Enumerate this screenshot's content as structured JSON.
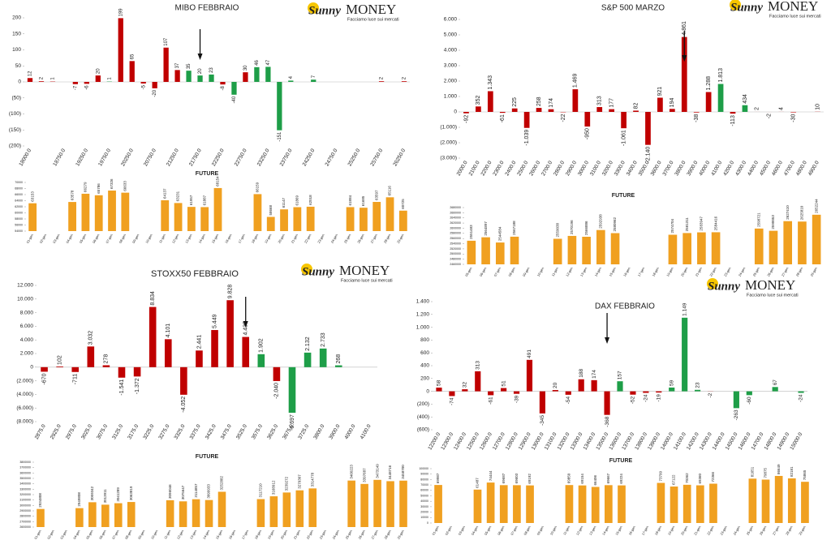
{
  "logo": {
    "brand": "Sunny",
    "name": "MONEY",
    "tagline": "Facciamo luce sui mercati"
  },
  "chart_data": [
    {
      "type": "bar",
      "title": "MIBO FEBBRAIO",
      "categories": [
        "18000.0",
        null,
        null,
        "18750.0",
        null,
        "19250.0",
        null,
        "19750.0",
        null,
        "20250.0",
        null,
        "20750.0",
        null,
        "21250.0",
        null,
        "21750.0",
        null,
        "22250.0",
        null,
        "22750.0",
        null,
        "23250.0",
        null,
        "23750.0",
        null,
        "24250.0",
        null,
        "24750.0",
        null,
        "25250.0",
        null,
        "25750.0",
        null,
        "26250.0"
      ],
      "values": [
        12,
        2,
        1,
        null,
        -7,
        -6,
        20,
        1,
        199,
        65,
        -5,
        -20,
        107,
        37,
        35,
        20,
        23,
        -8,
        -40,
        30,
        46,
        47,
        -151,
        4,
        null,
        7,
        null,
        null,
        null,
        null,
        null,
        2,
        null,
        2
      ],
      "colors": [
        "#c00000",
        "#c00000",
        "#c00000",
        null,
        "#c00000",
        "#c00000",
        "#c00000",
        "#1e9e48",
        "#c00000",
        "#c00000",
        "#c00000",
        "#c00000",
        "#c00000",
        "#c00000",
        "#1e9e48",
        "#1e9e48",
        "#1e9e48",
        "#c00000",
        "#1e9e48",
        "#c00000",
        "#1e9e48",
        "#1e9e48",
        "#1e9e48",
        "#1e9e48",
        null,
        "#1e9e48",
        null,
        null,
        null,
        null,
        null,
        "#c00000",
        null,
        "#c00000"
      ],
      "ylim": [
        -200,
        200
      ],
      "yticks": [
        200,
        150,
        100,
        50,
        0,
        {
          "value": -50,
          "label": "(50)"
        },
        {
          "value": -100,
          "label": "(100)"
        },
        {
          "value": -150,
          "label": "(150)"
        },
        {
          "value": -200,
          "label": "(200)"
        }
      ]
    },
    {
      "type": "bar",
      "title": "FUTURE",
      "color": "#f0a020",
      "categories": [
        "01-gen",
        "02-gen",
        "03-gen",
        "04-gen",
        "05-gen",
        "06-gen",
        "07-gen",
        "08-gen",
        "09-gen",
        "10-gen",
        "11-gen",
        "12-gen",
        "13-gen",
        "14-gen",
        "15-gen",
        "16-gen",
        "17-gen",
        "18-gen",
        "19-gen",
        "20-gen",
        "21-gen",
        "22-gen",
        "23-gen",
        "24-gen",
        "25-gen",
        "26-gen",
        "27-gen",
        "28-gen",
        "29-gen"
      ],
      "values": [
        63153,
        null,
        null,
        63578,
        66279,
        65786,
        67326,
        66633,
        null,
        null,
        64137,
        63231,
        61957,
        61887,
        68154,
        null,
        null,
        66159,
        58668,
        61147,
        61869,
        62018,
        null,
        null,
        61884,
        61685,
        63597,
        65116,
        60725
      ],
      "ylim": [
        54000,
        70000
      ],
      "yticks": [
        54000,
        56000,
        58000,
        60000,
        62000,
        64000,
        66000,
        68000,
        70000
      ]
    },
    {
      "type": "bar",
      "title": "S&P 500 MARZO",
      "categories": [
        "2000.0",
        "2100.0",
        "2200.0",
        "2300.0",
        "2400.0",
        "2500.0",
        "2600.0",
        "2700.0",
        "2800.0",
        "2900.0",
        "3000.0",
        "3100.0",
        "3200.0",
        "3300.0",
        "3400.0",
        "3500.0",
        "3600.0",
        "3700.0",
        "3800.0",
        "3900.0",
        "4000.0",
        "4100.0",
        "4200.0",
        "4300.0",
        "4400.0",
        "4500.0",
        "4600.0",
        "4700.0",
        "4800.0",
        "4900.0"
      ],
      "values": [
        -92,
        352,
        1343,
        -61,
        225,
        -1039,
        258,
        174,
        -22,
        1469,
        -950,
        313,
        177,
        -1061,
        82,
        -2140,
        921,
        194,
        4861,
        -38,
        1288,
        1813,
        -113,
        434,
        2,
        -2,
        4,
        -30,
        null,
        10
      ],
      "value_labels": [
        "-92",
        "352",
        "1.343",
        "-61",
        "225",
        "-1.039",
        "258",
        "174",
        "-22",
        "1.469",
        "-950",
        "313",
        "177",
        "-1.061",
        "82",
        "-2.140",
        "921",
        "194",
        "4.861",
        "-38",
        "1.288",
        "1.813",
        "-113",
        "434",
        "2",
        "-2",
        "4",
        "-30",
        null,
        "10"
      ],
      "colors": [
        "#c00000",
        "#c00000",
        "#c00000",
        "#c00000",
        "#c00000",
        "#c00000",
        "#c00000",
        "#c00000",
        "#c00000",
        "#c00000",
        "#c00000",
        "#c00000",
        "#c00000",
        "#c00000",
        "#c00000",
        "#c00000",
        "#c00000",
        "#c00000",
        "#c00000",
        "#c00000",
        "#c00000",
        "#1e9e48",
        "#c00000",
        "#1e9e48",
        "#c00000",
        "#c00000",
        "#c00000",
        "#c00000",
        null,
        "#c00000"
      ],
      "ylim": [
        -3000,
        6000
      ],
      "yticks": [
        {
          "value": 6000,
          "label": "6.000"
        },
        {
          "value": 5000,
          "label": "5.000"
        },
        {
          "value": 4000,
          "label": "4.000"
        },
        {
          "value": 3000,
          "label": "3.000"
        },
        {
          "value": 2000,
          "label": "2.000"
        },
        {
          "value": 1000,
          "label": "1.000"
        },
        0,
        {
          "value": -1000,
          "label": "(1.000)"
        },
        {
          "value": -2000,
          "label": "(2.000)"
        },
        {
          "value": -3000,
          "label": "(3.000)"
        }
      ]
    },
    {
      "type": "bar",
      "title": "FUTURE",
      "color": "#f0a020",
      "categories": [
        "05-gen",
        "06-gen",
        "07-gen",
        "08-gen",
        "09-gen",
        "10-gen",
        "11-gen",
        "12-gen",
        "13-gen",
        "14-gen",
        "15-gen",
        "16-gen",
        "17-gen",
        "18-gen",
        "19-gen",
        "20-gen",
        "21-gen",
        "22-gen",
        "23-gen",
        "24-gen",
        "25-gen",
        "26-gen",
        "27-gen",
        "28-gen",
        "29-gen"
      ],
      "values": [
        2551483,
        2564897,
        2544584,
        2567188,
        null,
        null,
        2559038,
        2570196,
        2566886,
        2592938,
        2580962,
        null,
        null,
        null,
        2574704,
        2581311,
        2583947,
        2584416,
        null,
        null,
        2598721,
        2590053,
        2627410,
        2625810,
        2652244
      ],
      "ylim": [
        2460000,
        2680000
      ],
      "yticks": [
        2460000,
        2480000,
        2500000,
        2520000,
        2540000,
        2560000,
        2580000,
        2600000,
        2620000,
        2640000,
        2660000,
        2680000
      ]
    },
    {
      "type": "bar",
      "title": "STOXX50 FEBBRAIO",
      "categories": [
        "2875.0",
        "2925.0",
        "2975.0",
        "3025.0",
        "3075.0",
        "3125.0",
        "3175.0",
        "3225.0",
        "3275.0",
        "3325.0",
        "3375.0",
        "3425.0",
        "3475.0",
        "3525.0",
        "3575.0",
        "3625.0",
        "3675.0",
        "3725.0",
        "3800.0",
        "3900.0",
        "4000.0",
        "4100.0"
      ],
      "values": [
        -670,
        102,
        -711,
        3032,
        278,
        -1541,
        -1372,
        8834,
        4101,
        -4052,
        2441,
        5449,
        9828,
        4435,
        1902,
        -2040,
        -6697,
        2132,
        2733,
        268,
        null,
        null
      ],
      "value_labels": [
        "-670",
        "102",
        "-711",
        "3.032",
        "278",
        "-1.541",
        "-1.372",
        "8.834",
        "4.101",
        "-4.052",
        "2.441",
        "5.449",
        "9.828",
        "4.435",
        "1.902",
        "-2.040",
        "-6.697",
        "2.132",
        "2.733",
        "268",
        null,
        null
      ],
      "colors": [
        "#c00000",
        "#c00000",
        "#c00000",
        "#c00000",
        "#c00000",
        "#c00000",
        "#c00000",
        "#c00000",
        "#c00000",
        "#c00000",
        "#c00000",
        "#c00000",
        "#c00000",
        "#c00000",
        "#1e9e48",
        "#c00000",
        "#1e9e48",
        "#1e9e48",
        "#1e9e48",
        "#1e9e48",
        null,
        null
      ],
      "ylim": [
        -8000,
        12000
      ],
      "yticks": [
        {
          "value": 12000,
          "label": "12.000"
        },
        {
          "value": 10000,
          "label": "10.000"
        },
        {
          "value": 8000,
          "label": "8.000"
        },
        {
          "value": 6000,
          "label": "6.000"
        },
        {
          "value": 4000,
          "label": "4.000"
        },
        {
          "value": 2000,
          "label": "2.000"
        },
        0,
        {
          "value": -2000,
          "label": "(2.000)"
        },
        {
          "value": -4000,
          "label": "(4.000)"
        },
        {
          "value": -6000,
          "label": "(6.000)"
        },
        {
          "value": -8000,
          "label": "(8.000)"
        }
      ]
    },
    {
      "type": "bar",
      "title": "FUTURE",
      "color": "#f0a020",
      "categories": [
        "01-gen",
        "02-gen",
        "03-gen",
        "04-gen",
        "05-gen",
        "06-gen",
        "07-gen",
        "08-gen",
        "09-gen",
        "10-gen",
        "11-gen",
        "12-gen",
        "13-gen",
        "14-gen",
        "15-gen",
        "16-gen",
        "17-gen",
        "18-gen",
        "19-gen",
        "20-gen",
        "21-gen",
        "22-gen",
        "23-gen",
        "24-gen",
        "25-gen",
        "26-gen",
        "27-gen",
        "28-gen",
        "29-gen"
      ],
      "values": [
        2934808,
        null,
        null,
        2949808,
        3059342,
        3013911,
        3041289,
        3063819,
        null,
        null,
        3096046,
        3075647,
        3114857,
        3099933,
        3252882,
        null,
        null,
        3117210,
        3168912,
        3239272,
        3279307,
        3314778,
        null,
        null,
        3460223,
        3397687,
        3473149,
        3448716,
        3458700
      ],
      "ylim": [
        2600000,
        3800000
      ],
      "yticks": [
        2600000,
        2700000,
        2800000,
        2900000,
        3000000,
        3100000,
        3200000,
        3300000,
        3400000,
        3500000,
        3600000,
        3700000,
        3800000
      ]
    },
    {
      "type": "bar",
      "title": "DAX FEBBRAIO",
      "categories": [
        "12200.0",
        "12300.0",
        "12400.0",
        "12500.0",
        "12600.0",
        "12700.0",
        "12800.0",
        "12900.0",
        "13000.0",
        "13100.0",
        "13200.0",
        "13300.0",
        "13400.0",
        "13500.0",
        "13600.0",
        "13700.0",
        "13800.0",
        "13900.0",
        "14000.0",
        "14100.0",
        "14200.0",
        "14300.0",
        "14400.0",
        "14500.0",
        "14600.0",
        "14700.0",
        "14800.0",
        "14900.0",
        "15000.0"
      ],
      "values": [
        58,
        -74,
        32,
        313,
        -61,
        51,
        -39,
        491,
        -345,
        20,
        -54,
        188,
        174,
        -368,
        157,
        -52,
        -24,
        -19,
        59,
        1149,
        23,
        -2,
        null,
        -263,
        -60,
        null,
        67,
        null,
        -24
      ],
      "value_labels": [
        "58",
        "-74",
        "32",
        "313",
        "-61",
        "51",
        "-39",
        "491",
        "-345",
        "20",
        "-54",
        "188",
        "174",
        "-368",
        "157",
        "-52",
        "-24",
        "-19",
        "59",
        "1.149",
        "23",
        "-2",
        null,
        "-263",
        "-60",
        null,
        "67",
        null,
        "-24"
      ],
      "colors": [
        "#c00000",
        "#c00000",
        "#c00000",
        "#c00000",
        "#c00000",
        "#c00000",
        "#c00000",
        "#c00000",
        "#c00000",
        "#c00000",
        "#c00000",
        "#c00000",
        "#c00000",
        "#c00000",
        "#1e9e48",
        "#c00000",
        "#c00000",
        "#c00000",
        "#1e9e48",
        "#1e9e48",
        "#1e9e48",
        "#c00000",
        null,
        "#1e9e48",
        "#1e9e48",
        null,
        "#1e9e48",
        null,
        "#1e9e48"
      ],
      "ylim": [
        -600,
        1400
      ],
      "yticks": [
        {
          "value": 1400,
          "label": "1.400"
        },
        {
          "value": 1200,
          "label": "1.200"
        },
        {
          "value": 1000,
          "label": "1.000"
        },
        800,
        600,
        400,
        200,
        0,
        {
          "value": -200,
          "label": "(200)"
        },
        {
          "value": -400,
          "label": "(400)"
        },
        {
          "value": -600,
          "label": "(600)"
        }
      ]
    },
    {
      "type": "bar",
      "title": "FUTURE",
      "color": "#f0a020",
      "categories": [
        "01-gen",
        "02-gen",
        "03-gen",
        "04-gen",
        "05-gen",
        "06-gen",
        "07-gen",
        "08-gen",
        "09-gen",
        "10-gen",
        "11-gen",
        "12-gen",
        "13-gen",
        "14-gen",
        "15-gen",
        "16-gen",
        "17-gen",
        "18-gen",
        "19-gen",
        "20-gen",
        "21-gen",
        "22-gen",
        "23-gen",
        "24-gen",
        "25-gen",
        "26-gen",
        "27-gen",
        "28-gen",
        "29-gen"
      ],
      "values": [
        69987,
        null,
        null,
        61487,
        74444,
        69687,
        69603,
        69192,
        null,
        null,
        69850,
        69154,
        66406,
        69667,
        69224,
        null,
        null,
        73799,
        67122,
        70362,
        69360,
        72366,
        null,
        null,
        81651,
        79875,
        86649,
        82181,
        75865
      ],
      "ylim": [
        0,
        100000
      ],
      "yticks": [
        0,
        10000,
        20000,
        30000,
        40000,
        50000,
        60000,
        70000,
        80000,
        90000,
        100000
      ]
    }
  ]
}
